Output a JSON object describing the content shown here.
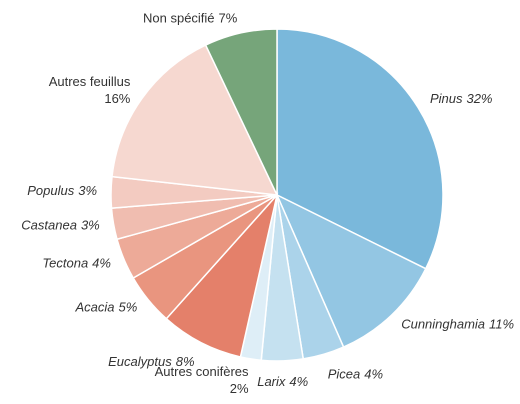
{
  "chart_data": {
    "type": "pie",
    "categories": [
      "Pinus",
      "Cunninghamia",
      "Picea",
      "Larix",
      "Autres conifères",
      "Eucalyptus",
      "Acacia",
      "Tectona",
      "Castanea",
      "Populus",
      "Autres feuillus",
      "Non spécifié"
    ],
    "values": [
      32,
      11,
      4,
      4,
      2,
      8,
      5,
      4,
      3,
      3,
      16,
      7
    ],
    "value_labels": [
      "32%",
      "11%",
      "4%",
      "4%",
      "2%",
      "8%",
      "5%",
      "4%",
      "3%",
      "3%",
      "16%",
      "7%"
    ],
    "colors": [
      "#7ab8db",
      "#93c6e3",
      "#abd3ea",
      "#c5e1f0",
      "#deeef7",
      "#e4806a",
      "#e9957f",
      "#edaa98",
      "#f0bdb0",
      "#f3cbc1",
      "#f6d8d0",
      "#76a57a"
    ]
  }
}
